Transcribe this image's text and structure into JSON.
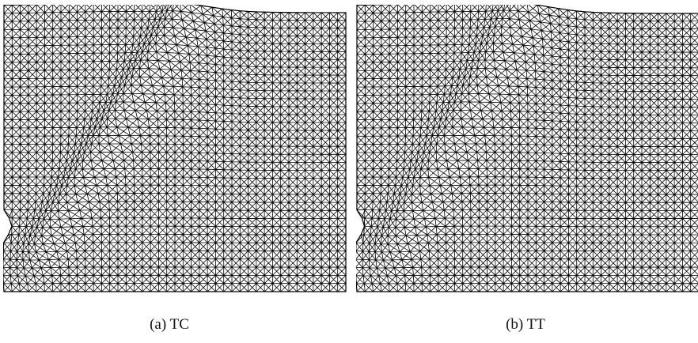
{
  "figure": {
    "panels": [
      {
        "id": "a",
        "caption": "(a) TC"
      },
      {
        "id": "b",
        "caption": "(b) TT"
      }
    ],
    "mesh": {
      "type": "triangulated quadrilateral mesh (union-jack pattern)",
      "line_color": "#000000",
      "background": "#ffffff"
    }
  }
}
